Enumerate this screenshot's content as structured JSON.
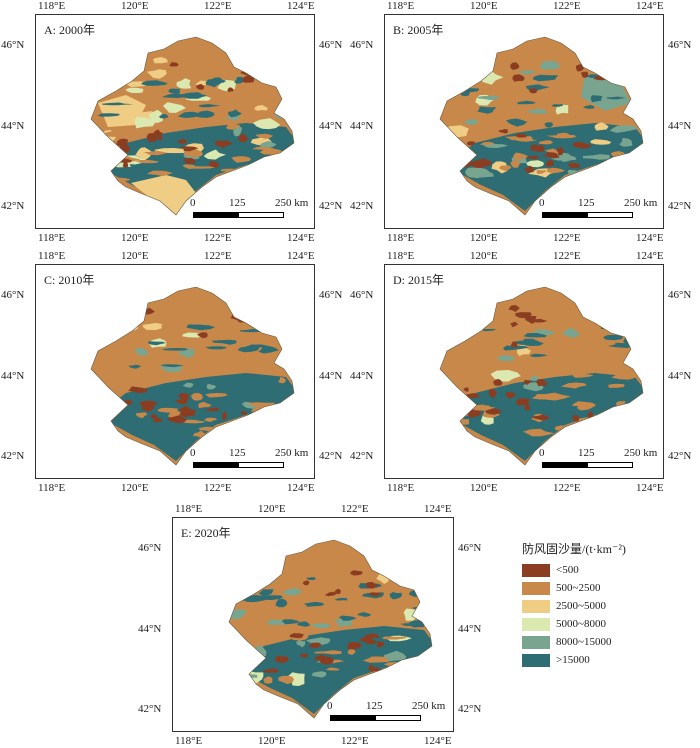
{
  "map": {
    "lon_ticks": [
      "118°E",
      "120°E",
      "122°E",
      "124°E"
    ],
    "lat_ticks": [
      "46°N",
      "44°N",
      "42°N"
    ],
    "scale_labels": [
      "0",
      "125",
      "250 km"
    ],
    "colors": {
      "c1": "#8b3d22",
      "c2": "#c8884a",
      "c3": "#f0cd84",
      "c4": "#dbe8b0",
      "c5": "#79a48f",
      "c6": "#2e6d73"
    },
    "panels": [
      {
        "label": "A: 2000年",
        "year": 2000
      },
      {
        "label": "B: 2005年",
        "year": 2005
      },
      {
        "label": "C: 2010年",
        "year": 2010
      },
      {
        "label": "D: 2015年",
        "year": 2015
      },
      {
        "label": "E: 2020年",
        "year": 2020
      }
    ]
  },
  "legend": {
    "title": "防风固沙量/(t·km⁻²)",
    "items": [
      {
        "label": "<500",
        "color": "#8b3d22"
      },
      {
        "label": "500~2500",
        "color": "#c8884a"
      },
      {
        "label": "2500~5000",
        "color": "#f0cd84"
      },
      {
        "label": "5000~8000",
        "color": "#dbe8b0"
      },
      {
        "label": "8000~15000",
        "color": "#79a48f"
      },
      {
        "label": ">15000",
        "color": "#2e6d73"
      }
    ]
  }
}
